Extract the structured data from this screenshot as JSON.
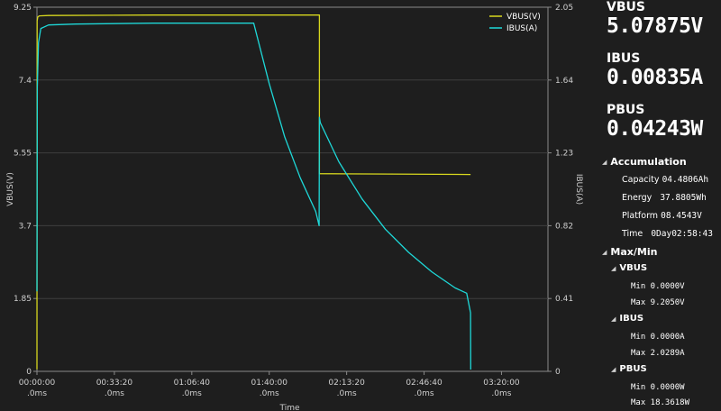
{
  "chart_data": {
    "type": "line",
    "xlabel": "Time",
    "ylabel_left": "VBUS(V)",
    "ylabel_right": "IBUS(A)",
    "left_ticks": [
      "9.25",
      "7.4",
      "5.55",
      "3.7",
      "1.85",
      "0"
    ],
    "right_ticks": [
      "2.05",
      "1.64",
      "1.23",
      "0.82",
      "0.41",
      "0"
    ],
    "x_ticks": [
      {
        "t": "00:00:00",
        "sub": ".0ms"
      },
      {
        "t": "00:33:20",
        "sub": ".0ms"
      },
      {
        "t": "01:06:40",
        "sub": ".0ms"
      },
      {
        "t": "01:40:00",
        "sub": ".0ms"
      },
      {
        "t": "02:13:20",
        "sub": ".0ms"
      },
      {
        "t": "02:46:40",
        "sub": ".0ms"
      },
      {
        "t": "03:20:00",
        "sub": ".0ms"
      }
    ],
    "ylim_left": [
      0,
      9.25
    ],
    "ylim_right": [
      0,
      2.05
    ],
    "xlim_seconds": [
      0,
      13200
    ],
    "grid": true,
    "legend_position": "top-right",
    "series": [
      {
        "name": "VBUS(V)",
        "color": "#d8d81e",
        "axis": "left",
        "x": [
          0,
          5,
          20,
          60,
          300,
          3000,
          6000,
          7200,
          7290,
          7295,
          7296,
          11200
        ],
        "values": [
          0.05,
          8.9,
          9.0,
          9.03,
          9.04,
          9.05,
          9.05,
          9.05,
          9.05,
          9.05,
          5.02,
          5.0
        ]
      },
      {
        "name": "IBUS(A)",
        "color": "#1ed8d8",
        "axis": "right",
        "x": [
          0,
          10,
          40,
          100,
          300,
          1000,
          3000,
          5600,
          6000,
          6400,
          6800,
          7200,
          7290,
          7296,
          7320,
          7800,
          8400,
          9000,
          9600,
          10200,
          10800,
          11100,
          11200,
          11205
        ],
        "values": [
          0.45,
          1.6,
          1.85,
          1.93,
          1.95,
          1.955,
          1.96,
          1.96,
          1.62,
          1.32,
          1.09,
          0.9,
          0.82,
          1.43,
          1.4,
          1.18,
          0.97,
          0.8,
          0.67,
          0.56,
          0.47,
          0.44,
          0.33,
          0.01
        ]
      }
    ]
  },
  "panel": {
    "vbus_label": "VBUS",
    "vbus_value": "5.07875V",
    "ibus_label": "IBUS",
    "ibus_value": "0.00835A",
    "pbus_label": "PBUS",
    "pbus_value": "0.04243W",
    "accumulation": {
      "title": "Accumulation",
      "capacity_label": "Capacity",
      "capacity_value": "04.4806Ah",
      "energy_label": "Energy",
      "energy_value": "37.8805Wh",
      "platform_label": "Platform",
      "platform_value": "08.4543V",
      "time_label": "Time",
      "time_value": "0Day02:58:43"
    },
    "maxmin": {
      "title": "Max/Min",
      "vbus_title": "VBUS",
      "vbus_min": "Min 0.0000V",
      "vbus_max": "Max 9.2050V",
      "ibus_title": "IBUS",
      "ibus_min": "Min 0.0000A",
      "ibus_max": "Max 2.0289A",
      "pbus_title": "PBUS",
      "pbus_min": "Min 0.0000W",
      "pbus_max": "Max 18.3618W"
    }
  }
}
